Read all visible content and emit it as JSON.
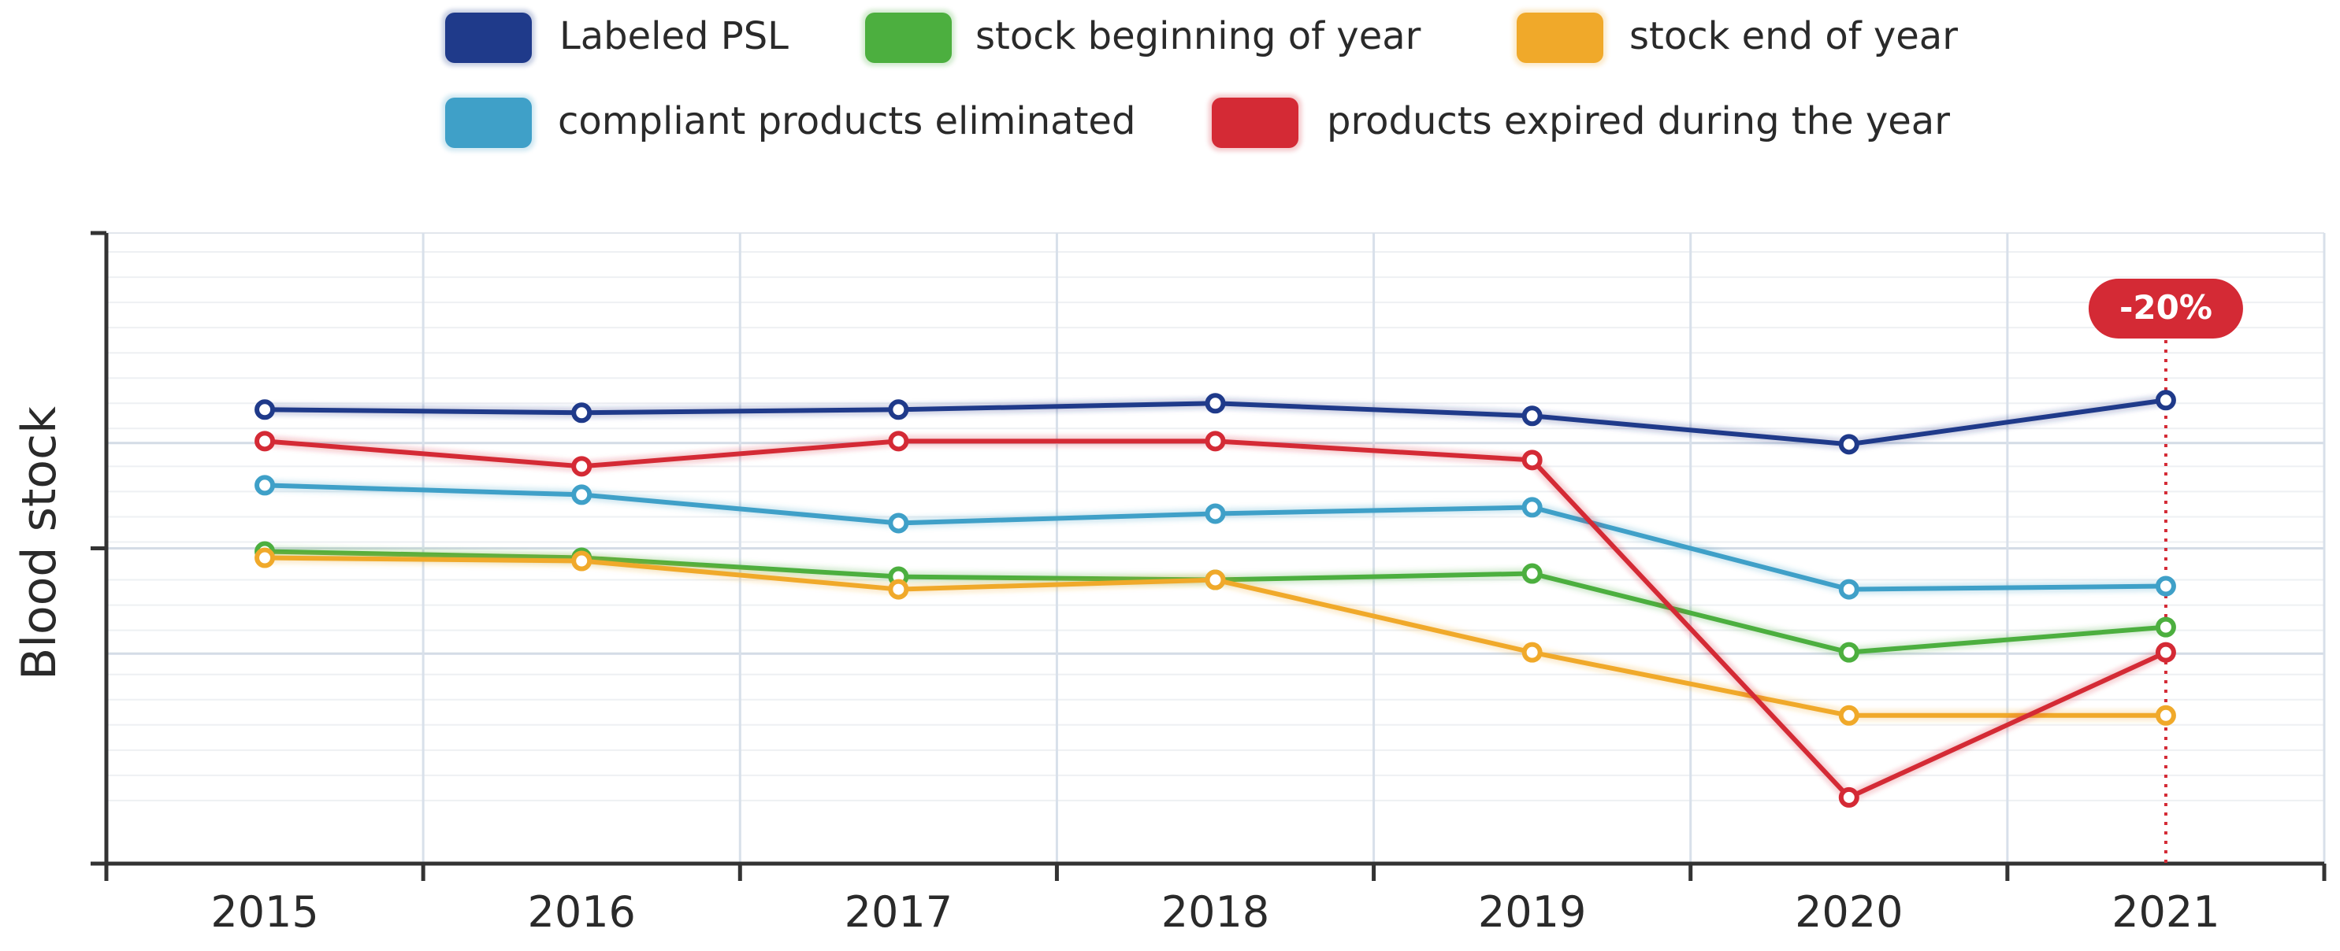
{
  "chart_data": {
    "type": "line",
    "title": "",
    "xlabel": "",
    "ylabel": "Blood stock",
    "x": [
      "2015",
      "2016",
      "2017",
      "2018",
      "2019",
      "2020",
      "2021"
    ],
    "ylim": [
      0,
      100
    ],
    "y_ticks_labeled": false,
    "grid": true,
    "legend_position": "top-center",
    "series": [
      {
        "name": "Labeled PSL",
        "color": "#1f3a8a",
        "values": [
          72,
          71.5,
          72,
          73,
          71,
          66.5,
          73.5
        ]
      },
      {
        "name": "stock beginning of year",
        "color": "#4caf3f",
        "values": [
          49.5,
          48.5,
          45.5,
          45,
          46,
          33.5,
          37.5
        ]
      },
      {
        "name": "stock end of year",
        "color": "#f0a92a",
        "values": [
          48.5,
          48,
          43.5,
          45,
          33.5,
          23.5,
          23.5
        ]
      },
      {
        "name": "compliant products eliminated",
        "color": "#3fa0c8",
        "values": [
          60,
          58.5,
          54,
          55.5,
          56.5,
          43.5,
          44
        ]
      },
      {
        "name": "products expired during the year",
        "color": "#d42a35",
        "values": [
          67,
          63,
          67,
          67,
          64,
          10.5,
          33.5
        ]
      }
    ],
    "annotations": [
      {
        "x": "2021",
        "label": "-20%",
        "color": "#d42a35",
        "style": "dotted-vertical-line"
      }
    ]
  }
}
